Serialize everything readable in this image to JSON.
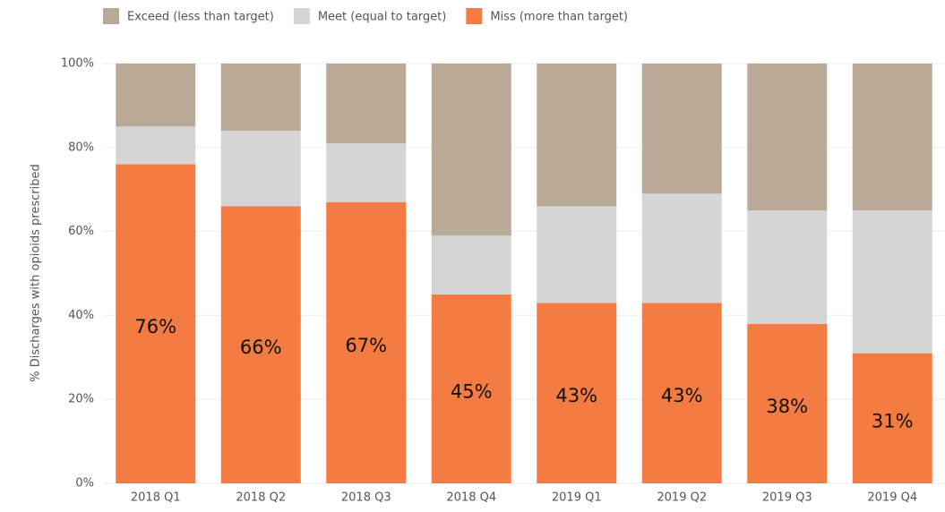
{
  "chart_data": {
    "type": "stacked_bar",
    "y_label": "% Discharges with opioids prescribed",
    "categories": [
      "2018 Q1",
      "2018 Q2",
      "2018 Q3",
      "2018 Q4",
      "2019 Q1",
      "2019 Q2",
      "2019 Q3",
      "2019 Q4"
    ],
    "series": [
      {
        "name": "Exceed (less than target)",
        "color": "#b9aa97",
        "values": [
          15,
          16,
          19,
          41,
          34,
          31,
          35,
          35
        ]
      },
      {
        "name": "Meet (equal to target)",
        "color": "#d5d5d5",
        "values": [
          9,
          18,
          14,
          14,
          23,
          26,
          27,
          34
        ]
      },
      {
        "name": "Miss (more than target)",
        "color": "#f47b42",
        "values": [
          76,
          66,
          67,
          45,
          43,
          43,
          38,
          31
        ],
        "value_labels": [
          "76%",
          "66%",
          "67%",
          "45%",
          "43%",
          "43%",
          "38%",
          "31%"
        ]
      }
    ],
    "ylim": [
      0,
      100
    ],
    "yticks": [
      {
        "value": 0,
        "label": "0%"
      },
      {
        "value": 20,
        "label": "20%"
      },
      {
        "value": 40,
        "label": "40%"
      },
      {
        "value": 60,
        "label": "60%"
      },
      {
        "value": 80,
        "label": "80%"
      },
      {
        "value": 100,
        "label": "100%"
      }
    ],
    "grid": true,
    "legend": "top"
  }
}
